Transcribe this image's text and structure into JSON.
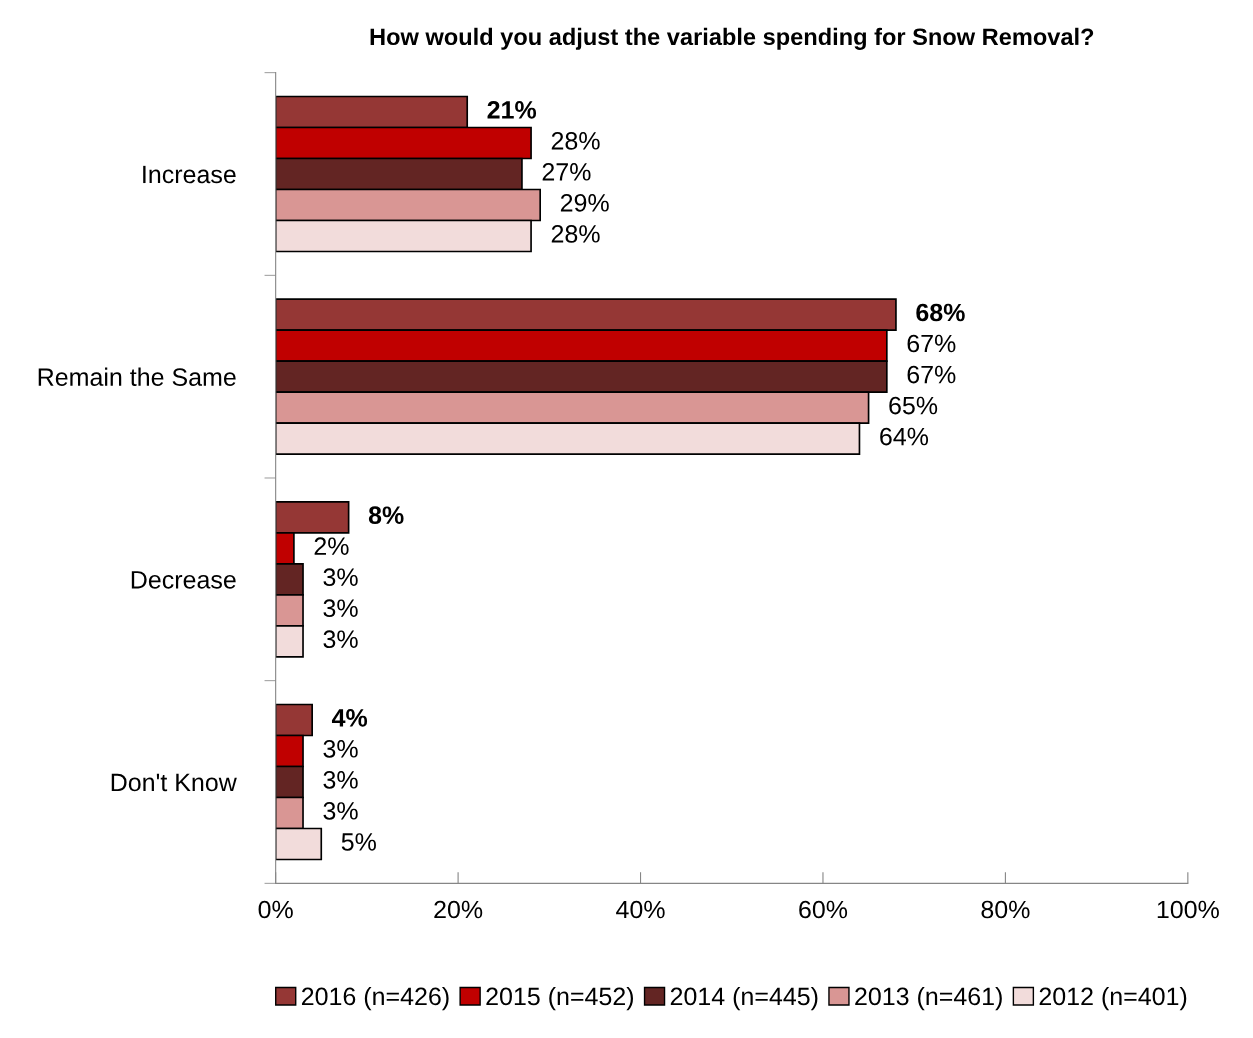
{
  "chart_data": {
    "type": "bar",
    "orientation": "horizontal",
    "title": "How would you adjust the variable spending for Snow Removal?",
    "categories": [
      "Increase",
      "Remain the Same",
      "Decrease",
      "Don't Know"
    ],
    "series": [
      {
        "name": "2016 (n=426)",
        "color": "#953735",
        "values": [
          21,
          68,
          8,
          4
        ],
        "value_labels": [
          "21%",
          "68%",
          "8%",
          "4%"
        ]
      },
      {
        "name": "2015 (n=452)",
        "color": "#c00000",
        "values": [
          28,
          67,
          2,
          3
        ],
        "value_labels": [
          "28%",
          "67%",
          "2%",
          "3%"
        ]
      },
      {
        "name": "2014 (n=445)",
        "color": "#632523",
        "values": [
          27,
          67,
          3,
          3
        ],
        "value_labels": [
          "27%",
          "67%",
          "3%",
          "3%"
        ]
      },
      {
        "name": "2013 (n=461)",
        "color": "#d99694",
        "values": [
          29,
          65,
          3,
          3
        ],
        "value_labels": [
          "29%",
          "65%",
          "3%",
          "3%"
        ]
      },
      {
        "name": "2012 (n=401)",
        "color": "#f2dcdb",
        "values": [
          28,
          64,
          3,
          5
        ],
        "value_labels": [
          "28%",
          "64%",
          "3%",
          "5%"
        ]
      }
    ],
    "xlim": [
      0,
      100
    ],
    "xticks": [
      {
        "value": 0,
        "label": "0%"
      },
      {
        "value": 20,
        "label": "20%"
      },
      {
        "value": 40,
        "label": "40%"
      },
      {
        "value": 60,
        "label": "60%"
      },
      {
        "value": 80,
        "label": "80%"
      },
      {
        "value": 100,
        "label": "100%"
      }
    ],
    "grid": false,
    "legend": "bottom"
  }
}
